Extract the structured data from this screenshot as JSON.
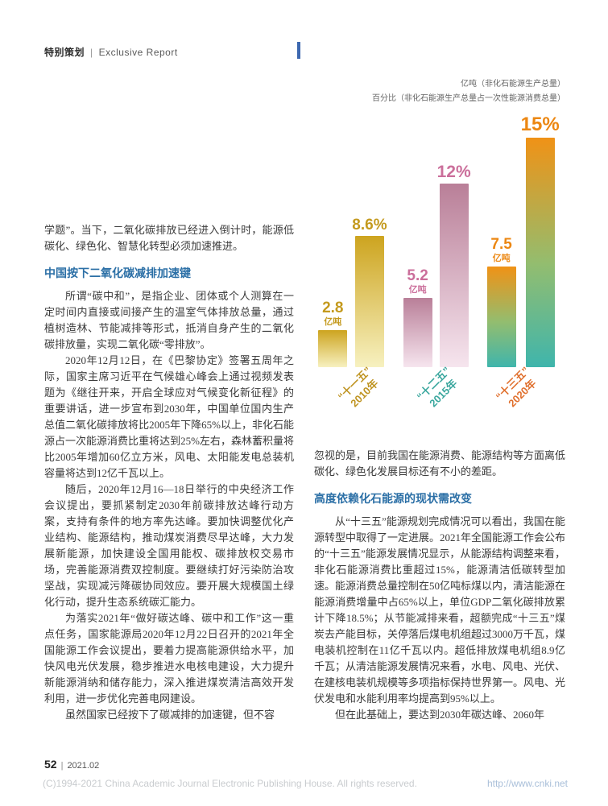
{
  "header": {
    "section_cn": "特别策划",
    "divider": "|",
    "section_en": "Exclusive Report"
  },
  "left_column": {
    "lead": "学题”。当下，二氧化碳排放已经进入倒计时，能源低碳化、绿色化、智慧化转型必须加速推进。",
    "heading": "中国按下二氧化碳减排加速键",
    "paragraphs": [
      "所谓“碳中和”，是指企业、团体或个人测算在一定时间内直接或间接产生的温室气体排放总量，通过植树造林、节能减排等形式，抵消自身产生的二氧化碳排放量，实现二氧化碳“零排放”。",
      "2020年12月12日，在《巴黎协定》签署五周年之际，国家主席习近平在气候雄心峰会上通过视频发表题为《继往开来，开启全球应对气候变化新征程》的重要讲话，进一步宣布到2030年，中国单位国内生产总值二氧化碳排放将比2005年下降65%以上，非化石能源占一次能源消费比重将达到25%左右，森林蓄积量将比2005年增加60亿立方米，风电、太阳能发电总装机容量将达到12亿千瓦以上。",
      "随后，2020年12月16—18日举行的中央经济工作会议提出，要抓紧制定2030年前碳排放达峰行动方案，支持有条件的地方率先达峰。要加快调整优化产业结构、能源结构，推动煤炭消费尽早达峰，大力发展新能源，加快建设全国用能权、碳排放权交易市场，完善能源消费双控制度。要继续打好污染防治攻坚战，实现减污降碳协同效应。要开展大规模国土绿化行动，提升生态系统碳汇能力。",
      "为落实2021年“做好碳达峰、碳中和工作”这一重点任务，国家能源局2020年12月22日召开的2021年全国能源工作会议提出，要着力提高能源供给水平，加快风电光伏发展，稳步推进水电核电建设，大力提升新能源消纳和储存能力，深入推进煤炭清洁高效开发利用，进一步优化完善电网建设。",
      "虽然国家已经按下了碳减排的加速键，但不容"
    ]
  },
  "right_column": {
    "lead": "忽视的是，目前我国在能源消费、能源结构等方面离低碳化、绿色化发展目标还有不小的差距。",
    "heading": "高度依赖化石能源的现状需改变",
    "paragraphs": [
      "从“十三五”能源规划完成情况可以看出，我国在能源转型中取得了一定进展。2021年全国能源工作会公布的“十三五”能源发展情况显示，从能源结构调整来看，非化石能源消费比重超过15%，能源清洁低碳转型加速。能源消费总量控制在50亿吨标煤以内，清洁能源在能源消费增量中占65%以上，单位GDP二氧化碳排放累计下降18.5%；从节能减排来看，超额完成“十三五”煤炭去产能目标，关停落后煤电机组超过3000万千瓦，煤电装机控制在11亿千瓦以内。超低排放煤电机组8.9亿千瓦；从清洁能源发展情况来看，水电、风电、光伏、在建核电装机规模等多项指标保持世界第一。风电、光伏发电和水能利用率均提高到95%以上。",
      "但在此基础上，要达到2030年碳达峰、2060年"
    ]
  },
  "footer": {
    "page_number": "52",
    "divider": "|",
    "issue": "2021.02",
    "copyright": "(C)1994-2021 China Academic Journal Electronic Publishing House. All rights reserved.",
    "url": "http://www.cnki.net"
  },
  "chart_data": {
    "type": "bar",
    "title": "",
    "legend": [
      "亿吨（非化石能源生产总量）",
      "百分比（非化石能源生产总量占一次性能源消费总量）"
    ],
    "categories": [
      "“十一五”2010年",
      "“十二五”2015年",
      "“十三五”2020年"
    ],
    "category_era": [
      "“十一五”",
      "“十二五”",
      "“十三五”"
    ],
    "category_year": [
      "2010年",
      "2015年",
      "2020年"
    ],
    "series": [
      {
        "name": "亿吨（非化石能源生产总量）",
        "unit": "亿吨",
        "values": [
          2.8,
          5.2,
          7.5
        ],
        "labels": [
          "2.8",
          "5.2",
          "7.5"
        ]
      },
      {
        "name": "百分比（非化石能源生产总量占一次性能源消费总量）",
        "unit": "%",
        "values": [
          8.6,
          12,
          15
        ],
        "labels": [
          "8.6%",
          "12%",
          "15%"
        ]
      }
    ],
    "ylim_ton": [
      0,
      8
    ],
    "ylim_pct": [
      0,
      16
    ],
    "grid": false,
    "legend_position": "top-right",
    "colors": {
      "group1_label": "#c49a1e",
      "group2_label": "#cb6f9b",
      "group3_label": "#ec8712",
      "group1_bar": [
        "#f7f1c0",
        "#cda41f"
      ],
      "group2_bar": [
        "#f6e5ee",
        "#b97f98"
      ],
      "group3_bar": [
        "#3fb5ac",
        "#f09216"
      ],
      "heading_blue": "#2b6fa6"
    }
  }
}
